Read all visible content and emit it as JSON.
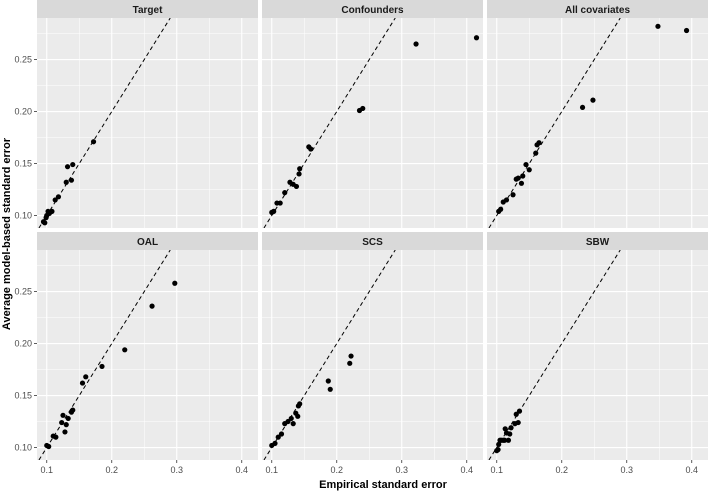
{
  "chart_data": {
    "type": "scatter",
    "xlabel": "Empirical standard error",
    "ylabel": "Average model-based standard error",
    "xlim": [
      0.085,
      0.425
    ],
    "ylim": [
      0.088,
      0.29
    ],
    "x_ticks": [
      0.1,
      0.2,
      0.3,
      0.4
    ],
    "x_tick_labels": [
      "0.1",
      "0.2",
      "0.3",
      "0.4"
    ],
    "y_ticks": [
      0.1,
      0.15,
      0.2,
      0.25
    ],
    "y_tick_labels": [
      "0.10",
      "0.15",
      "0.20",
      "0.25"
    ],
    "reference_line": "y = x (dashed)",
    "grid": true,
    "layout": "3 columns x 2 rows facets",
    "facets": [
      {
        "title": "Target",
        "points": [
          [
            0.095,
            0.094
          ],
          [
            0.097,
            0.093
          ],
          [
            0.099,
            0.098
          ],
          [
            0.1,
            0.1
          ],
          [
            0.102,
            0.104
          ],
          [
            0.104,
            0.102
          ],
          [
            0.108,
            0.104
          ],
          [
            0.113,
            0.115
          ],
          [
            0.118,
            0.118
          ],
          [
            0.13,
            0.132
          ],
          [
            0.132,
            0.147
          ],
          [
            0.138,
            0.134
          ],
          [
            0.14,
            0.149
          ],
          [
            0.172,
            0.171
          ]
        ]
      },
      {
        "title": "Confounders",
        "points": [
          [
            0.1,
            0.103
          ],
          [
            0.103,
            0.104
          ],
          [
            0.108,
            0.112
          ],
          [
            0.113,
            0.112
          ],
          [
            0.12,
            0.122
          ],
          [
            0.128,
            0.132
          ],
          [
            0.133,
            0.13
          ],
          [
            0.138,
            0.128
          ],
          [
            0.142,
            0.14
          ],
          [
            0.143,
            0.145
          ],
          [
            0.157,
            0.166
          ],
          [
            0.16,
            0.164
          ],
          [
            0.235,
            0.201
          ],
          [
            0.24,
            0.203
          ],
          [
            0.322,
            0.265
          ],
          [
            0.415,
            0.271
          ]
        ]
      },
      {
        "title": "All covariates",
        "points": [
          [
            0.103,
            0.104
          ],
          [
            0.106,
            0.106
          ],
          [
            0.11,
            0.113
          ],
          [
            0.115,
            0.115
          ],
          [
            0.125,
            0.12
          ],
          [
            0.13,
            0.135
          ],
          [
            0.133,
            0.136
          ],
          [
            0.138,
            0.131
          ],
          [
            0.14,
            0.138
          ],
          [
            0.145,
            0.149
          ],
          [
            0.15,
            0.144
          ],
          [
            0.16,
            0.16
          ],
          [
            0.162,
            0.168
          ],
          [
            0.165,
            0.17
          ],
          [
            0.232,
            0.204
          ],
          [
            0.248,
            0.211
          ],
          [
            0.348,
            0.282
          ],
          [
            0.392,
            0.278
          ]
        ]
      },
      {
        "title": "OAL",
        "points": [
          [
            0.1,
            0.102
          ],
          [
            0.103,
            0.101
          ],
          [
            0.11,
            0.111
          ],
          [
            0.114,
            0.11
          ],
          [
            0.123,
            0.124
          ],
          [
            0.125,
            0.131
          ],
          [
            0.128,
            0.115
          ],
          [
            0.13,
            0.122
          ],
          [
            0.133,
            0.128
          ],
          [
            0.138,
            0.134
          ],
          [
            0.14,
            0.136
          ],
          [
            0.155,
            0.162
          ],
          [
            0.16,
            0.168
          ],
          [
            0.185,
            0.178
          ],
          [
            0.22,
            0.194
          ],
          [
            0.262,
            0.236
          ],
          [
            0.297,
            0.258
          ]
        ]
      },
      {
        "title": "SCS",
        "points": [
          [
            0.1,
            0.102
          ],
          [
            0.105,
            0.104
          ],
          [
            0.11,
            0.11
          ],
          [
            0.115,
            0.113
          ],
          [
            0.12,
            0.123
          ],
          [
            0.125,
            0.125
          ],
          [
            0.13,
            0.128
          ],
          [
            0.133,
            0.123
          ],
          [
            0.137,
            0.133
          ],
          [
            0.14,
            0.13
          ],
          [
            0.141,
            0.14
          ],
          [
            0.143,
            0.142
          ],
          [
            0.187,
            0.164
          ],
          [
            0.19,
            0.156
          ],
          [
            0.22,
            0.181
          ],
          [
            0.222,
            0.188
          ]
        ]
      },
      {
        "title": "SBW",
        "points": [
          [
            0.1,
            0.097
          ],
          [
            0.102,
            0.098
          ],
          [
            0.103,
            0.103
          ],
          [
            0.105,
            0.107
          ],
          [
            0.107,
            0.107
          ],
          [
            0.11,
            0.107
          ],
          [
            0.112,
            0.107
          ],
          [
            0.113,
            0.118
          ],
          [
            0.115,
            0.114
          ],
          [
            0.118,
            0.107
          ],
          [
            0.12,
            0.113
          ],
          [
            0.122,
            0.119
          ],
          [
            0.128,
            0.123
          ],
          [
            0.13,
            0.132
          ],
          [
            0.133,
            0.124
          ],
          [
            0.135,
            0.135
          ]
        ]
      }
    ]
  },
  "colors": {
    "panel_bg": "#ebebeb",
    "grid": "#ffffff",
    "strip_bg": "#d9d9d9",
    "point": "#000000",
    "reference_line": "#000000"
  }
}
